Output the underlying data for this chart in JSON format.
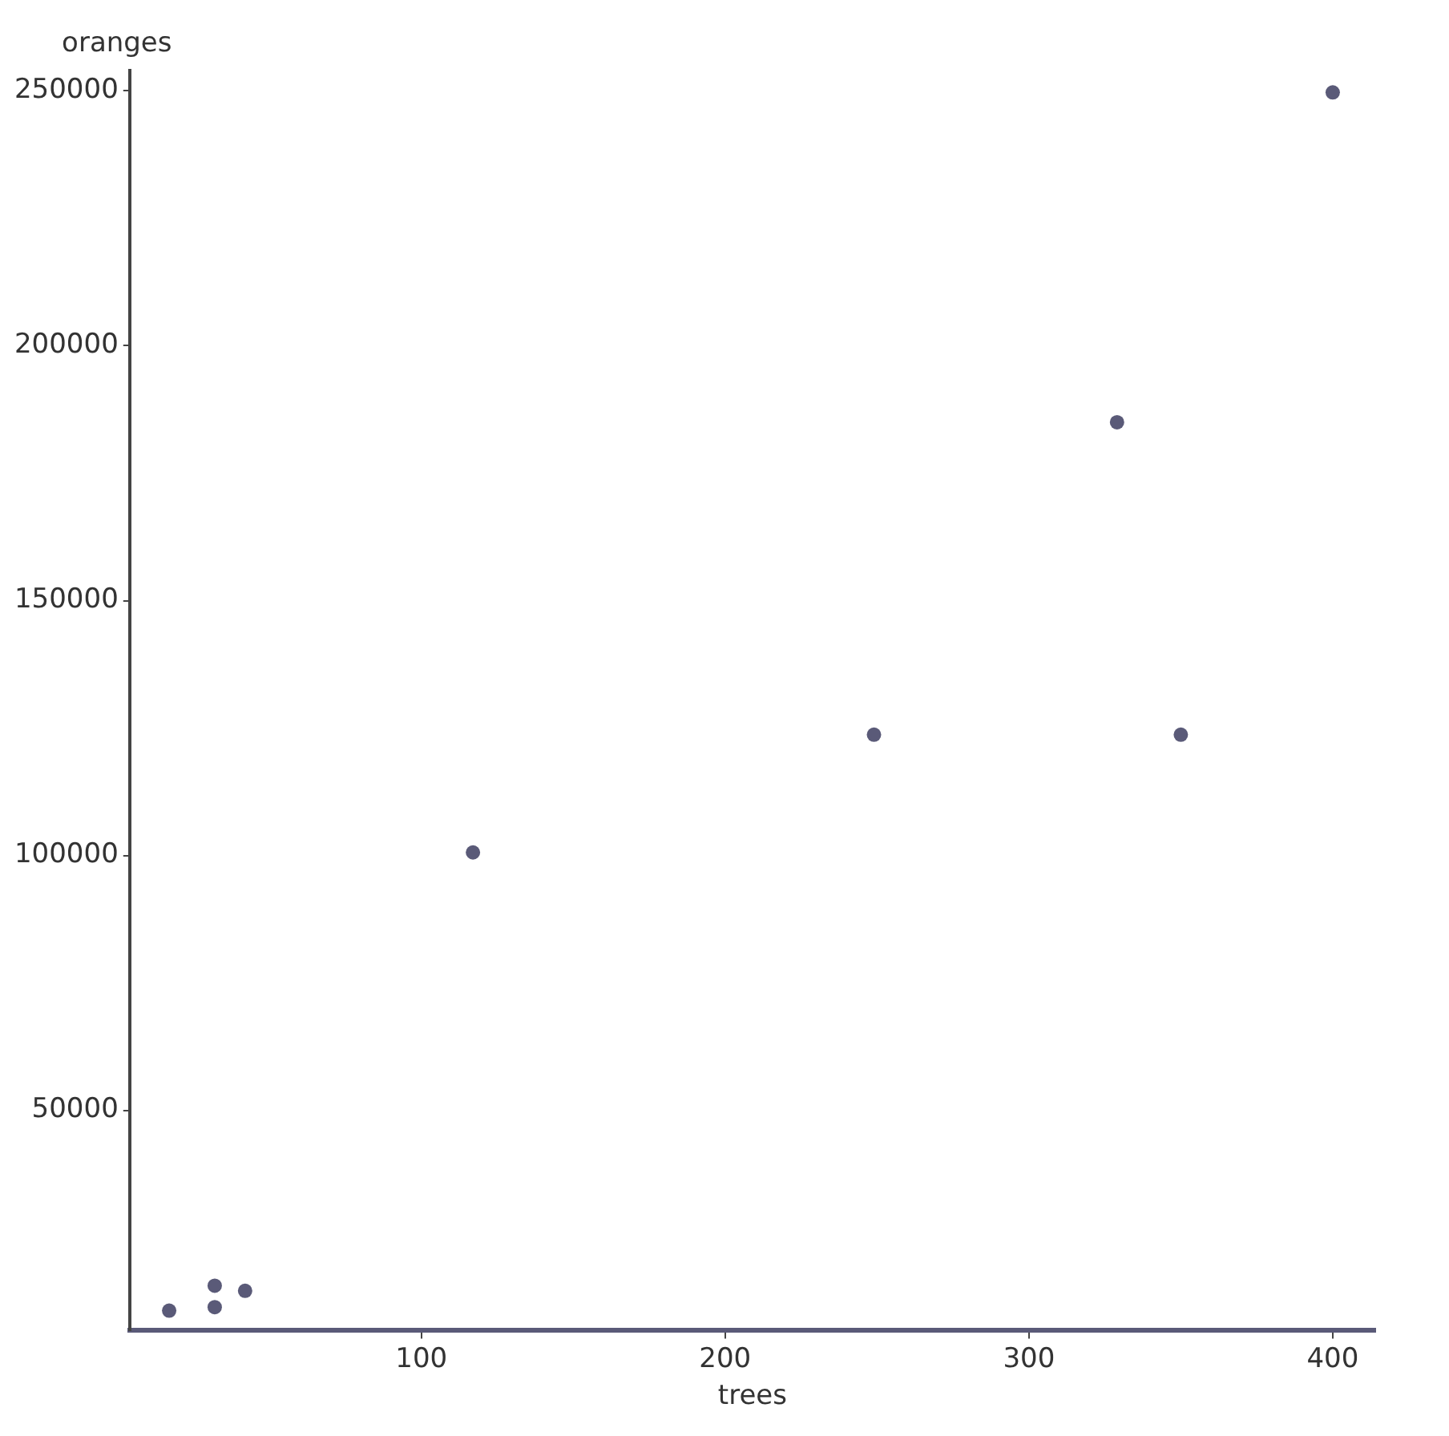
{
  "chart_data": {
    "type": "scatter",
    "xlabel": "trees",
    "ylabel": "oranges",
    "series": [
      {
        "color": "#5a5a78",
        "x": [
          17,
          32,
          32,
          42,
          117,
          249,
          329,
          350,
          400
        ],
        "values": [
          10700,
          15600,
          11400,
          14600,
          100600,
          123700,
          185000,
          123700,
          249700
        ]
      }
    ],
    "xlim": [
      4,
      414
    ],
    "ylim": [
      6800,
      254000
    ],
    "xticks": [
      100,
      200,
      300,
      400
    ],
    "yticks": [
      50000,
      100000,
      150000,
      200000,
      250000
    ],
    "grid": false,
    "legend": false,
    "marker": "circle"
  }
}
